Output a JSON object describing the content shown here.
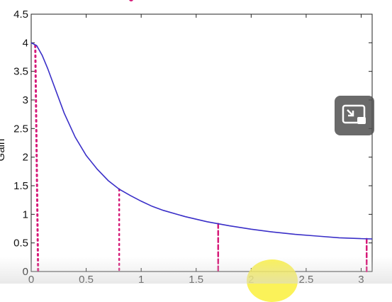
{
  "chart_data": {
    "type": "line",
    "title": "",
    "xlabel": "",
    "ylabel": "Gain",
    "xlim": [
      0,
      3.1
    ],
    "ylim": [
      0,
      4.5
    ],
    "xticks": [
      "0",
      "0.5",
      "1",
      "1.5",
      "2",
      "2.5",
      "3"
    ],
    "yticks": [
      "0",
      "0.5",
      "1",
      "1.5",
      "2",
      "2.5",
      "3",
      "3.5",
      "4",
      "4.5"
    ],
    "grid": false,
    "series": [
      {
        "color": "#3a2fc8",
        "x": [
          0,
          0.05,
          0.1,
          0.15,
          0.2,
          0.3,
          0.4,
          0.5,
          0.6,
          0.7,
          0.8,
          0.9,
          1.0,
          1.1,
          1.2,
          1.4,
          1.6,
          1.8,
          2.0,
          2.2,
          2.4,
          2.6,
          2.8,
          3.0,
          3.1
        ],
        "y": [
          4.0,
          3.95,
          3.78,
          3.55,
          3.29,
          2.77,
          2.35,
          2.03,
          1.79,
          1.59,
          1.44,
          1.33,
          1.23,
          1.14,
          1.07,
          0.96,
          0.87,
          0.8,
          0.74,
          0.69,
          0.65,
          0.62,
          0.59,
          0.575,
          0.57
        ]
      }
    ],
    "annotations": {
      "color": "#d61a78",
      "dotted_drops_x": [
        0.05,
        0.8,
        1.7,
        3.05
      ]
    }
  }
}
